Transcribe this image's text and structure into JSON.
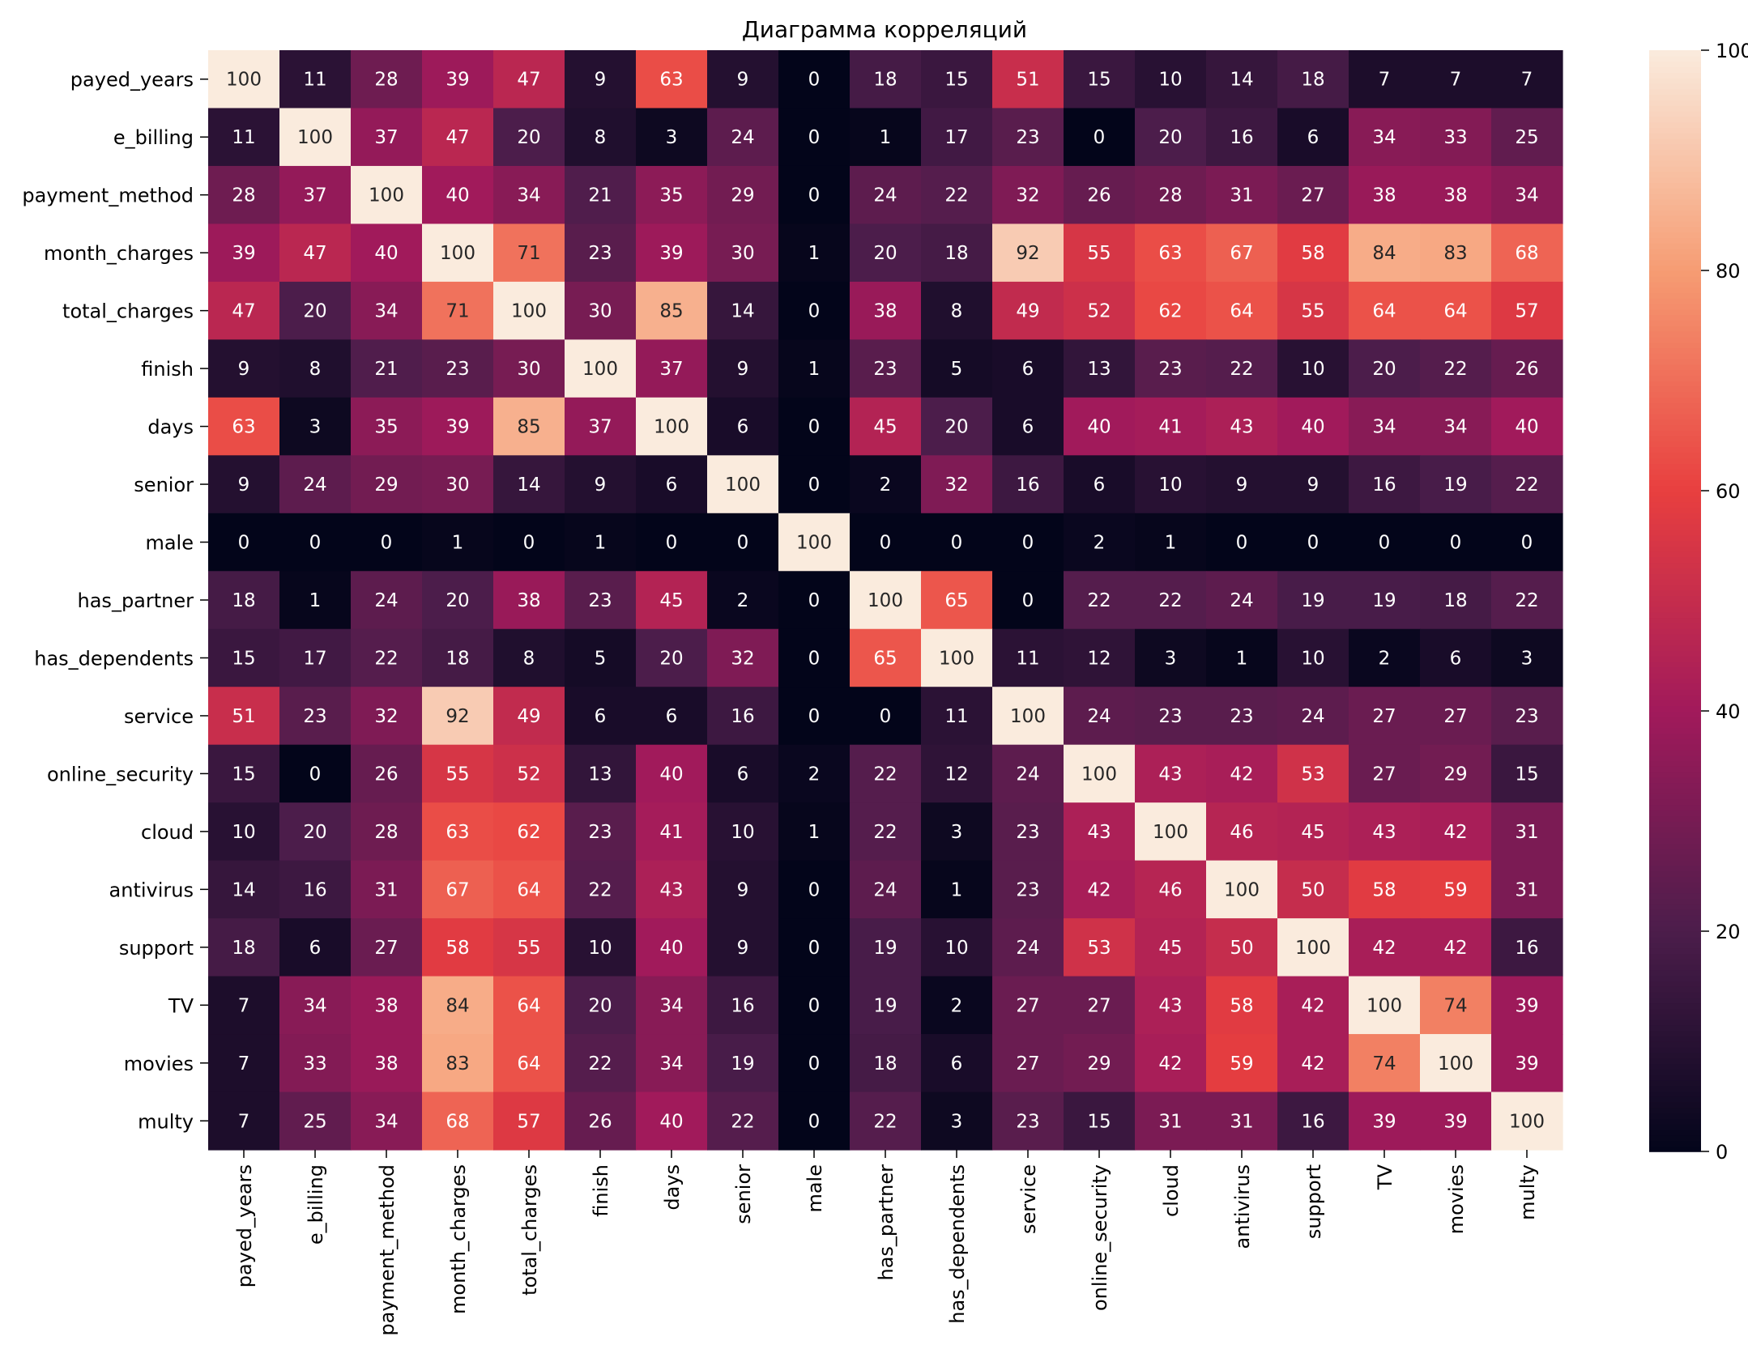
{
  "chart_data": {
    "type": "heatmap",
    "title": "Диаграмма корреляций",
    "labels": [
      "payed_years",
      "e_billing",
      "payment_method",
      "month_charges",
      "total_charges",
      "finish",
      "days",
      "senior",
      "male",
      "has_partner",
      "has_dependents",
      "service",
      "online_security",
      "cloud",
      "antivirus",
      "support",
      "TV",
      "movies",
      "multy"
    ],
    "values": [
      [
        100,
        11,
        28,
        39,
        47,
        9,
        63,
        9,
        0,
        18,
        15,
        51,
        15,
        10,
        14,
        18,
        7,
        7,
        7
      ],
      [
        11,
        100,
        37,
        47,
        20,
        8,
        3,
        24,
        0,
        1,
        17,
        23,
        0,
        20,
        16,
        6,
        34,
        33,
        25
      ],
      [
        28,
        37,
        100,
        40,
        34,
        21,
        35,
        29,
        0,
        24,
        22,
        32,
        26,
        28,
        31,
        27,
        38,
        38,
        34
      ],
      [
        39,
        47,
        40,
        100,
        71,
        23,
        39,
        30,
        1,
        20,
        18,
        92,
        55,
        63,
        67,
        58,
        84,
        83,
        68
      ],
      [
        47,
        20,
        34,
        71,
        100,
        30,
        85,
        14,
        0,
        38,
        8,
        49,
        52,
        62,
        64,
        55,
        64,
        64,
        57
      ],
      [
        9,
        8,
        21,
        23,
        30,
        100,
        37,
        9,
        1,
        23,
        5,
        6,
        13,
        23,
        22,
        10,
        20,
        22,
        26
      ],
      [
        63,
        3,
        35,
        39,
        85,
        37,
        100,
        6,
        0,
        45,
        20,
        6,
        40,
        41,
        43,
        40,
        34,
        34,
        40
      ],
      [
        9,
        24,
        29,
        30,
        14,
        9,
        6,
        100,
        0,
        2,
        32,
        16,
        6,
        10,
        9,
        9,
        16,
        19,
        22
      ],
      [
        0,
        0,
        0,
        1,
        0,
        1,
        0,
        0,
        100,
        0,
        0,
        0,
        2,
        1,
        0,
        0,
        0,
        0,
        0
      ],
      [
        18,
        1,
        24,
        20,
        38,
        23,
        45,
        2,
        0,
        100,
        65,
        0,
        22,
        22,
        24,
        19,
        19,
        18,
        22
      ],
      [
        15,
        17,
        22,
        18,
        8,
        5,
        20,
        32,
        0,
        65,
        100,
        11,
        12,
        3,
        1,
        10,
        2,
        6,
        3
      ],
      [
        51,
        23,
        32,
        92,
        49,
        6,
        6,
        16,
        0,
        0,
        11,
        100,
        24,
        23,
        23,
        24,
        27,
        27,
        23
      ],
      [
        15,
        0,
        26,
        55,
        52,
        13,
        40,
        6,
        2,
        22,
        12,
        24,
        100,
        43,
        42,
        53,
        27,
        29,
        15
      ],
      [
        10,
        20,
        28,
        63,
        62,
        23,
        41,
        10,
        1,
        22,
        3,
        23,
        43,
        100,
        46,
        45,
        43,
        42,
        31
      ],
      [
        14,
        16,
        31,
        67,
        64,
        22,
        43,
        9,
        0,
        24,
        1,
        23,
        42,
        46,
        100,
        50,
        58,
        59,
        31
      ],
      [
        18,
        6,
        27,
        58,
        55,
        10,
        40,
        9,
        0,
        19,
        10,
        24,
        53,
        45,
        50,
        100,
        42,
        42,
        16
      ],
      [
        7,
        34,
        38,
        84,
        64,
        20,
        34,
        16,
        0,
        19,
        2,
        27,
        27,
        43,
        58,
        42,
        100,
        74,
        39
      ],
      [
        7,
        33,
        38,
        83,
        64,
        22,
        34,
        19,
        0,
        18,
        6,
        27,
        29,
        42,
        59,
        42,
        74,
        100,
        39
      ],
      [
        7,
        25,
        34,
        68,
        57,
        26,
        40,
        22,
        0,
        22,
        3,
        23,
        15,
        31,
        31,
        16,
        39,
        39,
        100
      ]
    ],
    "colorbar": {
      "range": [
        0,
        100
      ],
      "ticks": [
        "0",
        "20",
        "40",
        "60",
        "80",
        "100"
      ],
      "colormap": "rocket",
      "colors": [
        "#03051a",
        "#4c1d4b",
        "#a11a5b",
        "#e83f3f",
        "#f69c73",
        "#faebdd"
      ]
    },
    "grid": false
  }
}
